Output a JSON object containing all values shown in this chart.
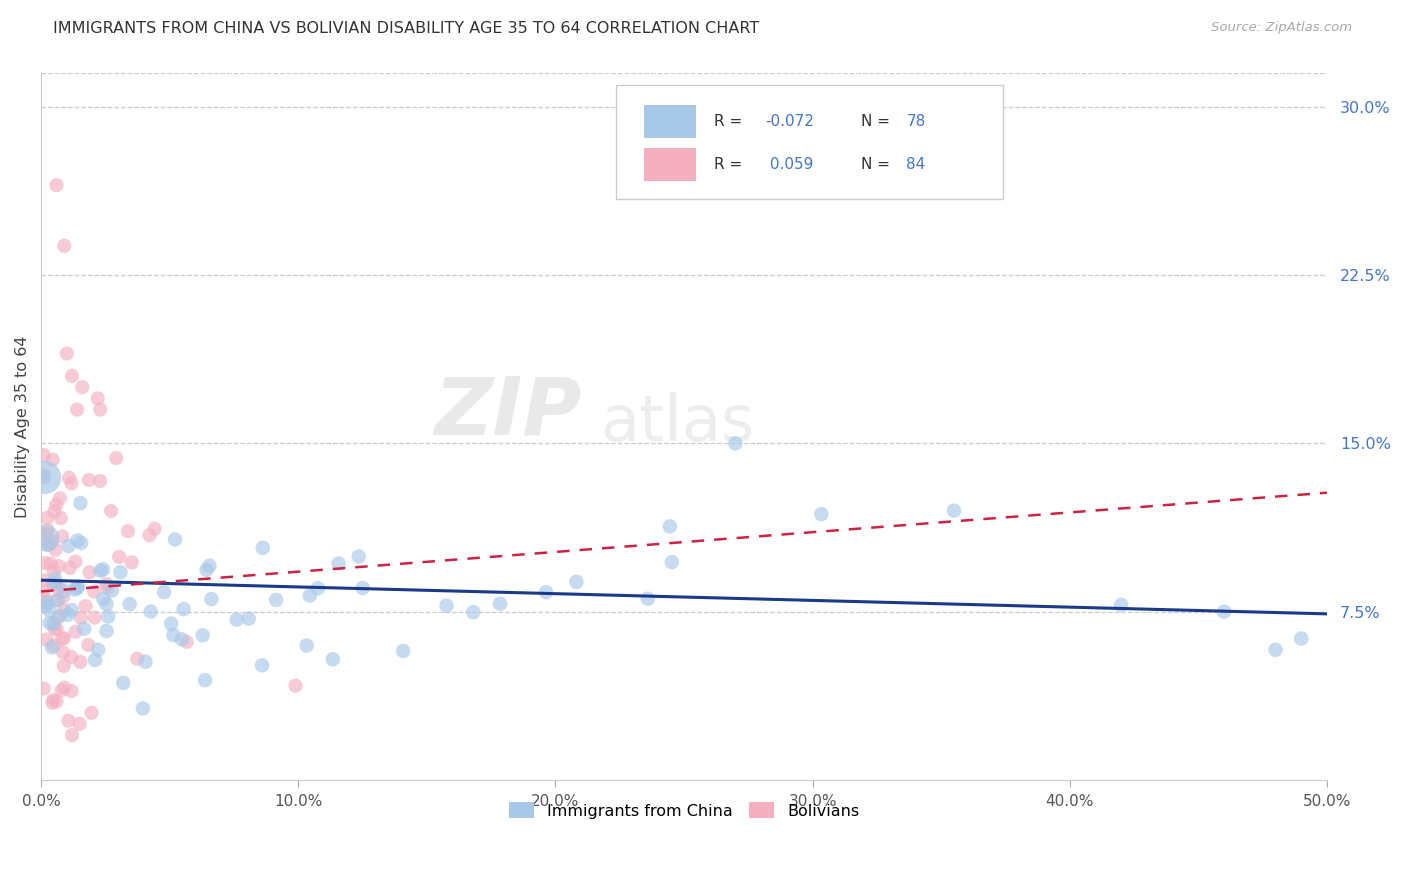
{
  "title": "IMMIGRANTS FROM CHINA VS BOLIVIAN DISABILITY AGE 35 TO 64 CORRELATION CHART",
  "source": "Source: ZipAtlas.com",
  "ylabel": "Disability Age 35 to 64",
  "xlim": [
    0.0,
    0.5
  ],
  "ylim": [
    0.0,
    0.315
  ],
  "xtick_vals": [
    0.0,
    0.1,
    0.2,
    0.3,
    0.4,
    0.5
  ],
  "xticklabels": [
    "0.0%",
    "10.0%",
    "20.0%",
    "30.0%",
    "40.0%",
    "50.0%"
  ],
  "yticks_right": [
    0.075,
    0.15,
    0.225,
    0.3
  ],
  "ytick_right_labels": [
    "7.5%",
    "15.0%",
    "22.5%",
    "30.0%"
  ],
  "r_china": -0.072,
  "n_china": 78,
  "r_bolivia": 0.059,
  "n_bolivia": 84,
  "color_china": "#a8c8e8",
  "color_bolivia": "#f4b0c0",
  "trendline_china_color": "#1a3a8a",
  "trendline_bolivia_color": "#cc2244",
  "watermark_zip": "ZIP",
  "watermark_atlas": "atlas",
  "legend_border_color": "#cccccc",
  "grid_color": "#cccccc",
  "title_color": "#333333",
  "source_color": "#aaaaaa",
  "tick_color": "#555555",
  "right_tick_color": "#4477cc",
  "trendline_china_y0": 0.089,
  "trendline_china_y1": 0.074,
  "trendline_bolivia_y0": 0.084,
  "trendline_bolivia_y1": 0.128
}
